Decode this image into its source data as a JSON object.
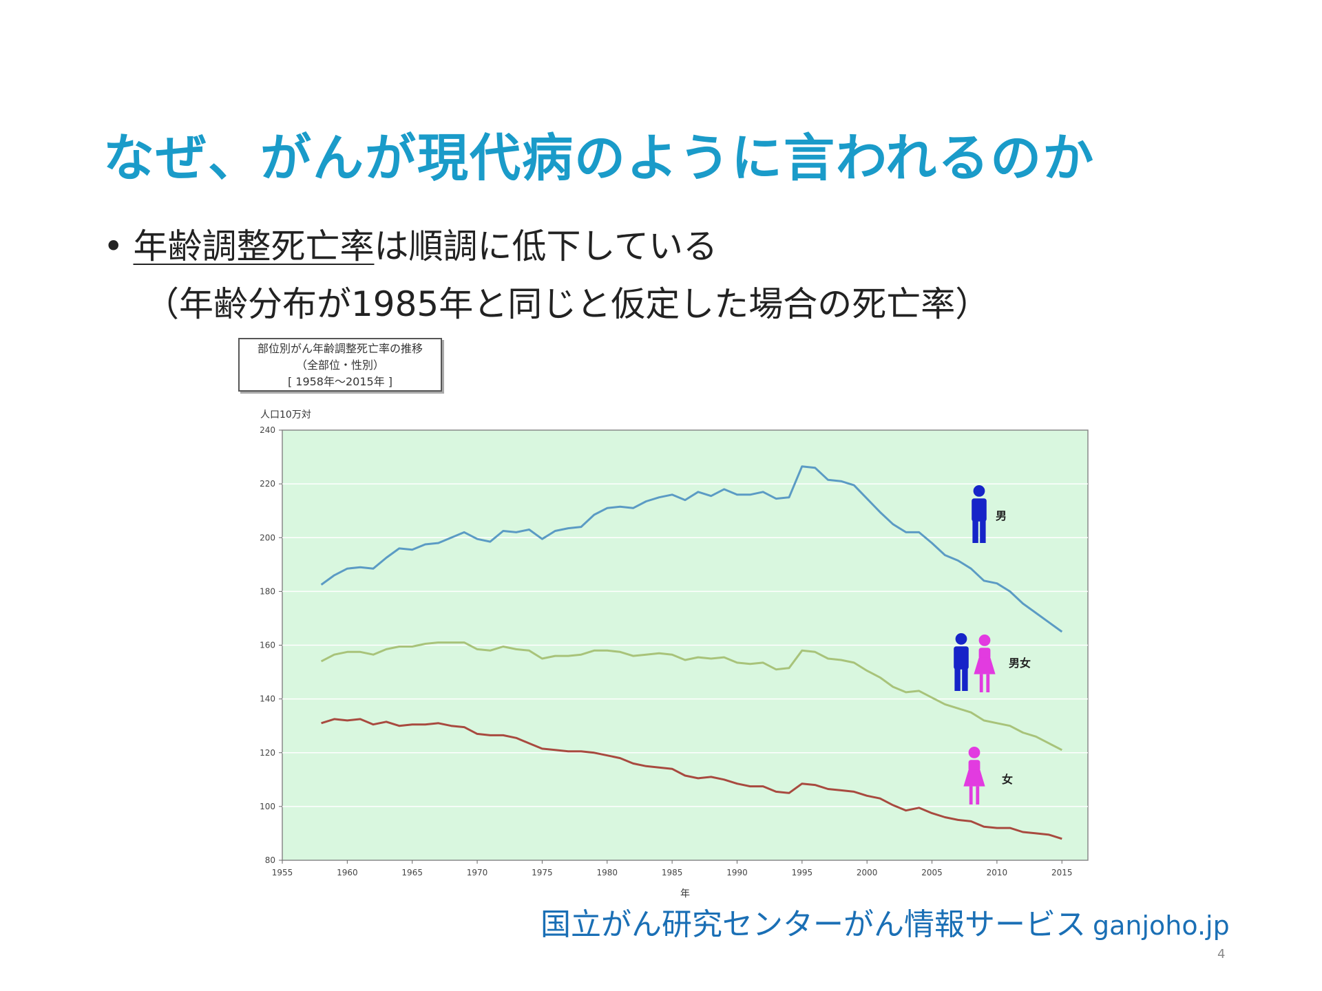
{
  "slide": {
    "title": "なぜ、がんが現代病のように言われるのか",
    "bullet_marker": "•",
    "bullet_underlined": "年齢調整死亡率",
    "bullet_rest": "は順調に低下している",
    "bullet_sub": "（年齢分布が1985年と同じと仮定した場合の死亡率）",
    "source": "国立がん研究センターがん情報サービス",
    "source_url": "ganjoho.jp",
    "page_number": "4"
  },
  "chart_box": {
    "line1": "部位別がん年齢調整死亡率の推移",
    "line2": "（全部位・性別）",
    "line3": "[ 1958年～2015年 ]"
  },
  "colors": {
    "title": "#1a9bc9",
    "source": "#1a6fb5",
    "plot_bg": "#d9f7df",
    "male_line": "#5b9bc4",
    "total_line": "#a8c37a",
    "female_line": "#a84a3f",
    "male_icon": "#1624c8",
    "female_icon": "#e23be0"
  },
  "chart_data": {
    "type": "line",
    "title": "部位別がん年齢調整死亡率の推移",
    "subtitle": "（全部位・性別） [ 1958年～2015年 ]",
    "xlabel": "年",
    "ylabel": "人口10万対",
    "xlim": [
      1955,
      2017
    ],
    "ylim": [
      80,
      240
    ],
    "xticks": [
      1955,
      1960,
      1965,
      1970,
      1975,
      1980,
      1985,
      1990,
      1995,
      2000,
      2005,
      2010,
      2015
    ],
    "yticks": [
      80,
      100,
      120,
      140,
      160,
      180,
      200,
      220,
      240
    ],
    "grid": true,
    "x": [
      1958,
      1959,
      1960,
      1961,
      1962,
      1963,
      1964,
      1965,
      1966,
      1967,
      1968,
      1969,
      1970,
      1971,
      1972,
      1973,
      1974,
      1975,
      1976,
      1977,
      1978,
      1979,
      1980,
      1981,
      1982,
      1983,
      1984,
      1985,
      1986,
      1987,
      1988,
      1989,
      1990,
      1991,
      1992,
      1993,
      1994,
      1995,
      1996,
      1997,
      1998,
      1999,
      2000,
      2001,
      2002,
      2003,
      2004,
      2005,
      2006,
      2007,
      2008,
      2009,
      2010,
      2011,
      2012,
      2013,
      2014,
      2015
    ],
    "series": [
      {
        "name": "男",
        "icon": "male-figure",
        "values": [
          182.5,
          186,
          188.5,
          189,
          188.5,
          192.5,
          196,
          195.5,
          197.5,
          198,
          200,
          202,
          199.5,
          198.5,
          202.5,
          202,
          203,
          199.5,
          202.5,
          203.5,
          204,
          208.5,
          211,
          211.5,
          211,
          213.5,
          215,
          216,
          214,
          217,
          215.5,
          218,
          216,
          216,
          217,
          214.5,
          215,
          226.5,
          226,
          221.5,
          221,
          219.5,
          214.5,
          209.5,
          205,
          202,
          202,
          198,
          193.5,
          191.5,
          188.5,
          184,
          183,
          180,
          175.5,
          172,
          168.5,
          165
        ]
      },
      {
        "name": "男女",
        "icon": "male-and-female-figures",
        "values": [
          154,
          156.5,
          157.5,
          157.5,
          156.5,
          158.5,
          159.5,
          159.5,
          160.5,
          161,
          161,
          161,
          158.5,
          158,
          159.5,
          158.5,
          158,
          155,
          156,
          156,
          156.5,
          158,
          158,
          157.5,
          156,
          156.5,
          157,
          156.5,
          154.5,
          155.5,
          155,
          155.5,
          153.5,
          153,
          153.5,
          151,
          151.5,
          158,
          157.5,
          155,
          154.5,
          153.5,
          150.5,
          148,
          144.5,
          142.5,
          143,
          140.5,
          138,
          136.5,
          135,
          132,
          131,
          130,
          127.5,
          126,
          123.5,
          121
        ]
      },
      {
        "name": "女",
        "icon": "female-figure",
        "values": [
          131,
          132.5,
          132,
          132.5,
          130.5,
          131.5,
          130,
          130.5,
          130.5,
          131,
          130,
          129.5,
          127,
          126.5,
          126.5,
          125.5,
          123.5,
          121.5,
          121,
          120.5,
          120.5,
          120,
          119,
          118,
          116,
          115,
          114.5,
          114,
          111.5,
          110.5,
          111,
          110,
          108.5,
          107.5,
          107.5,
          105.5,
          105,
          108.5,
          108,
          106.5,
          106,
          105.5,
          104,
          103,
          100.5,
          98.5,
          99.5,
          97.5,
          96,
          95,
          94.5,
          92.5,
          92,
          92,
          90.5,
          90,
          89.5,
          88
        ]
      }
    ]
  }
}
